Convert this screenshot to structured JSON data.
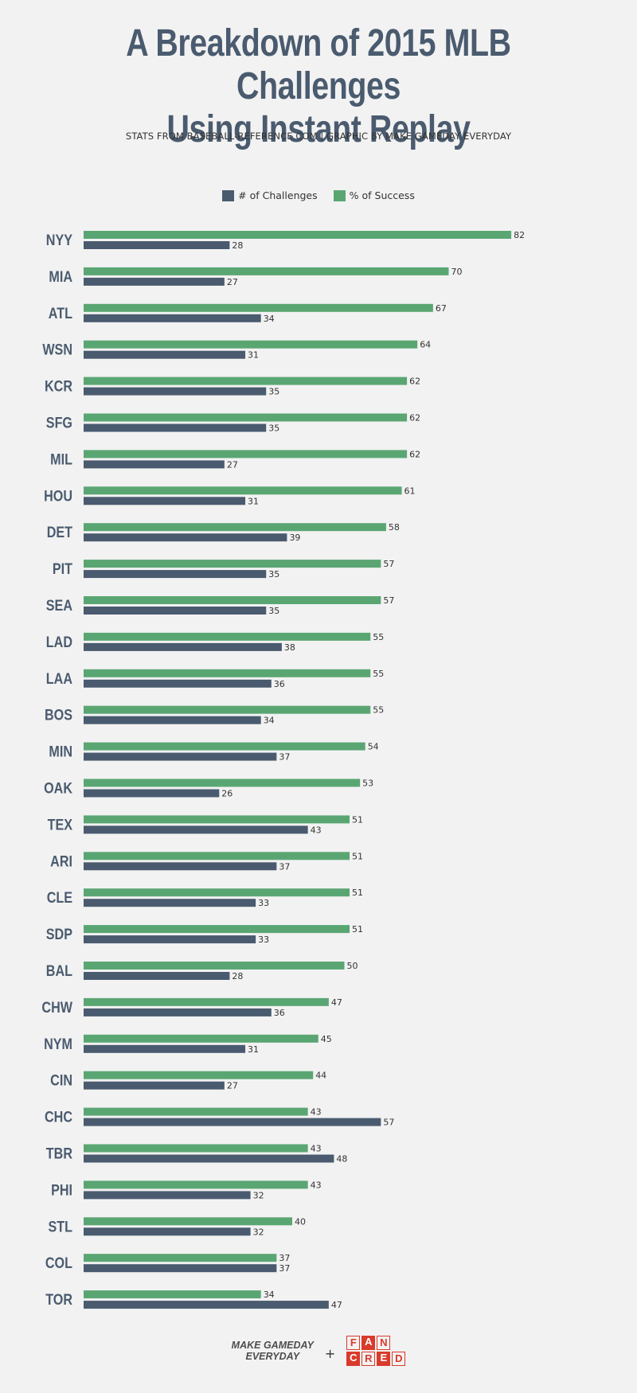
{
  "title": "A Breakdown of 2015 MLB Challenges Using Instant Replay",
  "title_line1": "A Breakdown of 2015 MLB Challenges",
  "title_line2": "Using Instant Replay",
  "subtitle": "STATS FROM BASEBALL-REFERENCE.COM  |  GRAPHIC BY MAKE GAMEDAY EVERYDAY",
  "colors": {
    "challenges": "#4a5b6f",
    "success": "#5aa673",
    "team_label": "#4a5b6f"
  },
  "footer": {
    "brand_line1": "MAKE GAMEDAY",
    "brand_line2": "EVERYDAY",
    "plus": "+",
    "fancred_letters": [
      "F",
      "A",
      "N",
      "",
      "C",
      "R",
      "E",
      "D"
    ]
  },
  "chart_data": {
    "type": "bar",
    "orientation": "horizontal",
    "title": "A Breakdown of 2015 MLB Challenges Using Instant Replay",
    "legend": [
      "# of Challenges",
      "% of Success"
    ],
    "legend_position": "top-center",
    "xlim": [
      0,
      100
    ],
    "categories": [
      "NYY",
      "MIA",
      "ATL",
      "WSN",
      "KCR",
      "SFG",
      "MIL",
      "HOU",
      "DET",
      "PIT",
      "SEA",
      "LAD",
      "LAA",
      "BOS",
      "MIN",
      "OAK",
      "TEX",
      "ARI",
      "CLE",
      "SDP",
      "BAL",
      "CHW",
      "NYM",
      "CIN",
      "CHC",
      "TBR",
      "PHI",
      "STL",
      "COL",
      "TOR"
    ],
    "series": [
      {
        "name": "% of Success",
        "values": [
          82,
          70,
          67,
          64,
          62,
          62,
          62,
          61,
          58,
          57,
          57,
          55,
          55,
          55,
          54,
          53,
          51,
          51,
          51,
          51,
          50,
          47,
          45,
          44,
          43,
          43,
          43,
          40,
          37,
          34
        ]
      },
      {
        "name": "# of Challenges",
        "values": [
          28,
          27,
          34,
          31,
          35,
          35,
          27,
          31,
          39,
          35,
          35,
          38,
          36,
          34,
          37,
          26,
          43,
          37,
          33,
          33,
          28,
          36,
          31,
          27,
          57,
          48,
          32,
          32,
          37,
          47
        ]
      }
    ]
  }
}
